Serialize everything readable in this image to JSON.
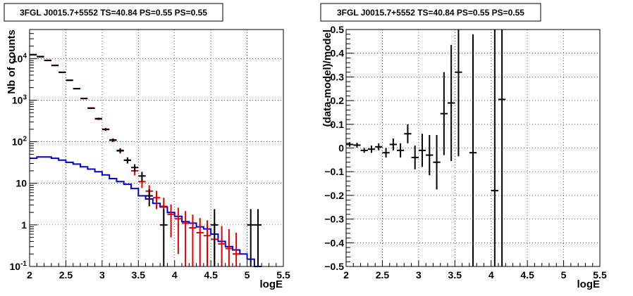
{
  "panels": [
    {
      "title": "3FGL J0015.7+5552 TS=40.84 PS=0.55 PS=0.55",
      "xlabel": "logE",
      "ylabel": "Nb of counts"
    },
    {
      "title": "3FGL J0015.7+5552 TS=40.84 PS=0.55 PS=0.55",
      "xlabel": "logE",
      "ylabel": "(data-model)/model"
    }
  ],
  "chart_data": [
    {
      "type": "scatter",
      "title": "3FGL J0015.7+5552 TS=40.84 PS=0.55 PS=0.55",
      "xlabel": "logE",
      "ylabel": "Nb of counts",
      "xlim": [
        2,
        5.5
      ],
      "ylim": [
        0.1,
        50000
      ],
      "yscale": "log",
      "grid": true,
      "xticks": [
        "2",
        "2.5",
        "3",
        "3.5",
        "4",
        "4.5",
        "5",
        "5.5"
      ],
      "yticks": [
        {
          "value": 0.1,
          "label": "10^-1"
        },
        {
          "value": 1,
          "label": "1"
        },
        {
          "value": 10,
          "label": "10"
        },
        {
          "value": 100,
          "label": "10^2"
        },
        {
          "value": 1000,
          "label": "10^3"
        },
        {
          "value": 10000,
          "label": "10^4"
        }
      ],
      "colors": {
        "data": "#000000",
        "model_total": "#dd0000",
        "model_source": "#0000cc"
      },
      "bin_edges": [
        2.0,
        2.1,
        2.2,
        2.3,
        2.4,
        2.5,
        2.6,
        2.7,
        2.8,
        2.9,
        3.0,
        3.1,
        3.2,
        3.3,
        3.4,
        3.5,
        3.6,
        3.7,
        3.8,
        3.9,
        4.0,
        4.1,
        4.2,
        4.3,
        4.4,
        4.5,
        4.6,
        4.7,
        4.8,
        4.9,
        5.0,
        5.1,
        5.2
      ],
      "series": [
        {
          "kind": "data_points",
          "x": [
            2.05,
            2.15,
            2.25,
            2.35,
            2.45,
            2.55,
            2.65,
            2.75,
            2.85,
            2.95,
            3.05,
            3.15,
            3.25,
            3.35,
            3.45,
            3.55,
            3.65,
            3.85,
            4.55,
            5.05,
            5.15
          ],
          "y": [
            12500,
            11200,
            9000,
            6900,
            4700,
            3000,
            1900,
            1100,
            640,
            360,
            200,
            110,
            62,
            36,
            24,
            15,
            5,
            1,
            1,
            1,
            1
          ],
          "err_low": [
            112,
            106,
            95,
            83,
            69,
            55,
            44,
            33,
            25,
            19,
            14,
            10,
            8,
            6,
            4.9,
            3.9,
            2.2,
            1,
            1,
            1,
            1
          ],
          "err_high": [
            112,
            106,
            95,
            83,
            69,
            55,
            44,
            33,
            25,
            19,
            14,
            10,
            8,
            6,
            4.9,
            3.9,
            2.2,
            1.4,
            1.4,
            1.4,
            1.4
          ]
        },
        {
          "kind": "model_points",
          "x": [
            2.05,
            2.15,
            2.25,
            2.35,
            2.45,
            2.55,
            2.65,
            2.75,
            2.85,
            2.95,
            3.05,
            3.15,
            3.25,
            3.35,
            3.45,
            3.55,
            3.65,
            3.75,
            3.85,
            3.95,
            4.05,
            4.15,
            4.25,
            4.35,
            4.45,
            4.55,
            4.65,
            4.75,
            4.85
          ],
          "y": [
            12300,
            11000,
            9100,
            6800,
            4650,
            3020,
            1880,
            1090,
            650,
            352,
            196,
            108,
            60,
            36,
            20,
            11,
            6.5,
            4.5,
            2.8,
            1.8,
            1.4,
            1.1,
            0.85,
            0.65,
            0.55,
            0.45,
            0.35,
            0.27,
            0.2
          ],
          "err": [
            111,
            105,
            95,
            82,
            68,
            55,
            43,
            33,
            25,
            19,
            14,
            10.4,
            7.7,
            6,
            4.5,
            3.3,
            2.5,
            2.1,
            1.7,
            1.3,
            1.2,
            1.05,
            0.92,
            0.81,
            0.74,
            0.67,
            0.59,
            0.52,
            0.45
          ]
        },
        {
          "kind": "source_histogram",
          "y": [
            40,
            43,
            43,
            40,
            36,
            32,
            29,
            25,
            22,
            19,
            16,
            13,
            11,
            9.5,
            7.5,
            5,
            4.2,
            3.3,
            2.7,
            2,
            1.6,
            1.2,
            1.1,
            0.9,
            0.8,
            0.6,
            0.4,
            0.3,
            0.25,
            0.2,
            0.15,
            0.1
          ]
        }
      ]
    },
    {
      "type": "scatter",
      "title": "3FGL J0015.7+5552 TS=40.84 PS=0.55 PS=0.55",
      "xlabel": "logE",
      "ylabel": "(data-model)/model",
      "xlim": [
        2,
        5.5
      ],
      "ylim": [
        -0.5,
        0.5
      ],
      "grid": true,
      "xticks": [
        "2",
        "2.5",
        "3",
        "3.5",
        "4",
        "4.5",
        "5",
        "5.5"
      ],
      "yticks": [
        "−0.5",
        "−0.4",
        "−0.3",
        "−0.2",
        "−0.1",
        "0",
        "0.1",
        "0.2",
        "0.3",
        "0.4",
        "0.5"
      ],
      "series": [
        {
          "kind": "residuals",
          "x": [
            2.05,
            2.15,
            2.25,
            2.35,
            2.45,
            2.55,
            2.65,
            2.75,
            2.85,
            2.95,
            3.05,
            3.15,
            3.25,
            3.35,
            3.45,
            3.55,
            3.75,
            4.05,
            4.15
          ],
          "y": [
            0.015,
            0.012,
            -0.01,
            -0.005,
            0.005,
            -0.02,
            0.015,
            -0.01,
            0.06,
            -0.04,
            -0.01,
            -0.03,
            -0.06,
            0.145,
            0.19,
            0.32,
            -0.02,
            -0.18,
            0.205
          ],
          "err": [
            0.01,
            0.01,
            0.01,
            0.015,
            0.015,
            0.02,
            0.025,
            0.03,
            0.04,
            0.05,
            0.07,
            0.085,
            0.115,
            0.175,
            0.245,
            0.355,
            0.5,
            1.0,
            1.0
          ]
        }
      ]
    }
  ]
}
